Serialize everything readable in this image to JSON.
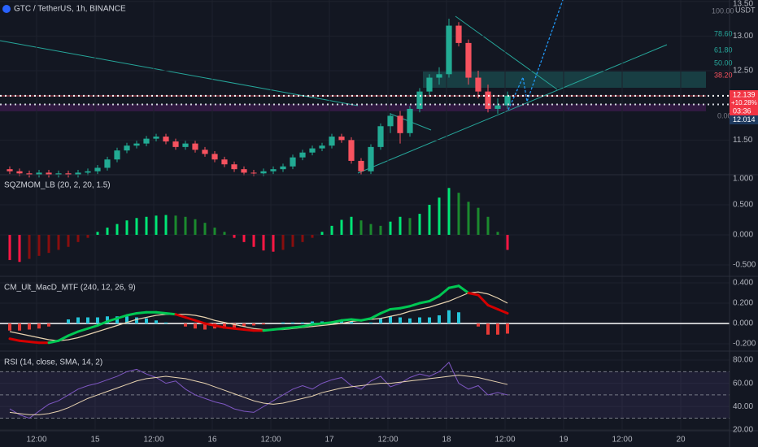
{
  "chart_data": [
    {
      "type": "candlestick",
      "title": "GTC / TetherUS, 1h, BINANCE",
      "unit": "USDT",
      "x": [
        2,
        4,
        6,
        8,
        10,
        12,
        14,
        16,
        18,
        20,
        22,
        24,
        26,
        28,
        30,
        32,
        34,
        36,
        38,
        40,
        42,
        44,
        46,
        48,
        50,
        52,
        54,
        56,
        58,
        60,
        62,
        64,
        66,
        68,
        70,
        72,
        74,
        76,
        78,
        80,
        82,
        84,
        86,
        88,
        90,
        92,
        94,
        96,
        98,
        100,
        102,
        104
      ],
      "xlim": [
        0,
        149.5
      ],
      "open": [
        11.08,
        11.05,
        11.02,
        11.0,
        11.03,
        11.0,
        11.02,
        11.0,
        11.03,
        11.05,
        11.1,
        11.22,
        11.35,
        11.42,
        11.45,
        11.52,
        11.55,
        11.48,
        11.4,
        11.45,
        11.36,
        11.3,
        11.22,
        11.15,
        11.08,
        11.03,
        11.02,
        11.05,
        11.08,
        11.12,
        11.25,
        11.32,
        11.38,
        11.42,
        11.55,
        11.5,
        11.2,
        11.05,
        11.4,
        11.7,
        11.85,
        11.6,
        11.95,
        12.2,
        12.4,
        12.45,
        13.15,
        12.9,
        12.4,
        12.2,
        11.95,
        12.0
      ],
      "high": [
        11.12,
        11.09,
        11.06,
        11.07,
        11.07,
        11.06,
        11.06,
        11.07,
        11.09,
        11.14,
        11.26,
        11.39,
        11.46,
        11.49,
        11.56,
        11.59,
        11.59,
        11.52,
        11.49,
        11.49,
        11.4,
        11.34,
        11.26,
        11.19,
        11.12,
        11.07,
        11.09,
        11.12,
        11.16,
        11.29,
        11.36,
        11.42,
        11.46,
        11.59,
        11.59,
        11.54,
        11.24,
        11.44,
        11.74,
        11.89,
        11.92,
        11.99,
        12.25,
        12.45,
        12.55,
        13.25,
        13.2,
        12.95,
        12.5,
        12.3,
        12.1,
        12.2
      ],
      "low": [
        11.01,
        10.98,
        10.96,
        10.96,
        10.96,
        10.96,
        10.96,
        10.96,
        10.99,
        11.01,
        11.06,
        11.18,
        11.31,
        11.38,
        11.41,
        11.48,
        11.44,
        11.36,
        11.36,
        11.32,
        11.26,
        11.18,
        11.11,
        11.04,
        10.99,
        10.98,
        10.98,
        11.01,
        11.04,
        11.08,
        11.21,
        11.28,
        11.34,
        11.38,
        11.46,
        11.16,
        11.0,
        11.01,
        11.36,
        11.6,
        11.45,
        11.55,
        11.9,
        12.15,
        12.3,
        12.4,
        12.85,
        12.3,
        12.1,
        11.9,
        11.88,
        11.95
      ],
      "close": [
        11.05,
        11.02,
        11.0,
        11.03,
        11.0,
        11.02,
        11.0,
        11.03,
        11.05,
        11.1,
        11.22,
        11.35,
        11.42,
        11.45,
        11.52,
        11.55,
        11.48,
        11.4,
        11.45,
        11.36,
        11.3,
        11.22,
        11.15,
        11.08,
        11.03,
        11.02,
        11.05,
        11.08,
        11.12,
        11.25,
        11.32,
        11.38,
        11.42,
        11.55,
        11.5,
        11.2,
        11.05,
        11.4,
        11.7,
        11.85,
        11.6,
        11.95,
        12.2,
        12.4,
        12.45,
        13.15,
        12.9,
        12.4,
        12.2,
        11.95,
        12.0,
        12.14
      ],
      "up_color": "#22ab94",
      "down_color": "#f7525f",
      "ylim": [
        11.0,
        13.52
      ],
      "yticks": [
        {
          "value": 13.5,
          "label": "13.50"
        },
        {
          "value": 13.0,
          "label": "13.00"
        },
        {
          "value": 12.5,
          "label": "12.50"
        },
        {
          "value": 11.5,
          "label": "11.50"
        }
      ],
      "fib_labels": [
        "100.00",
        "78.60",
        "61.80",
        "50.00",
        "38.20",
        "0.00"
      ],
      "last_price": 12.139,
      "change": "+10.28%",
      "countdown": "03:36",
      "line_price": 12.014
    },
    {
      "type": "squeeze",
      "title": "SQZMOM_LB (20, 2, 20, 1.5)",
      "values": [
        -0.42,
        -0.45,
        -0.4,
        -0.35,
        -0.3,
        -0.25,
        -0.2,
        -0.12,
        -0.05,
        0.05,
        0.12,
        0.18,
        0.24,
        0.28,
        0.3,
        0.32,
        0.33,
        0.32,
        0.3,
        0.26,
        0.2,
        0.12,
        0.05,
        -0.05,
        -0.12,
        -0.2,
        -0.26,
        -0.28,
        -0.25,
        -0.2,
        -0.12,
        -0.05,
        0.05,
        0.15,
        0.25,
        0.3,
        0.24,
        0.18,
        0.15,
        0.22,
        0.3,
        0.28,
        0.35,
        0.5,
        0.62,
        0.78,
        0.7,
        0.55,
        0.45,
        0.3,
        0.05,
        -0.25
      ],
      "colors": {
        "pos_up": "#00e676",
        "pos_down": "#1b8a2e",
        "neg_down": "#ff1744",
        "neg_up": "#880e0e"
      },
      "ylim": [
        -0.69,
        1.0
      ],
      "yticks": [
        {
          "value": 1,
          "label": "1.000"
        },
        {
          "value": 0.5,
          "label": "0.500"
        },
        {
          "value": 0,
          "label": "0.000"
        },
        {
          "value": -0.5,
          "label": "-0.500"
        }
      ]
    },
    {
      "type": "macd",
      "title": "CM_Ult_MacD_MTF (240, 12, 26, 9)",
      "macd": [
        -0.15,
        -0.17,
        -0.18,
        -0.19,
        -0.19,
        -0.17,
        -0.12,
        -0.08,
        -0.05,
        -0.02,
        0.02,
        0.05,
        0.08,
        0.1,
        0.11,
        0.11,
        0.1,
        0.09,
        0.06,
        0.03,
        0.0,
        -0.02,
        -0.04,
        -0.05,
        -0.06,
        -0.07,
        -0.07,
        -0.06,
        -0.05,
        -0.04,
        -0.03,
        -0.01,
        0.0,
        0.01,
        0.03,
        0.04,
        0.03,
        0.05,
        0.1,
        0.14,
        0.15,
        0.17,
        0.2,
        0.22,
        0.27,
        0.35,
        0.37,
        0.3,
        0.28,
        0.18,
        0.14,
        0.1
      ],
      "signal": [
        -0.08,
        -0.1,
        -0.12,
        -0.14,
        -0.16,
        -0.17,
        -0.16,
        -0.14,
        -0.11,
        -0.08,
        -0.05,
        -0.02,
        0.01,
        0.04,
        0.06,
        0.08,
        0.09,
        0.09,
        0.09,
        0.08,
        0.06,
        0.03,
        0.01,
        -0.01,
        -0.03,
        -0.05,
        -0.06,
        -0.06,
        -0.06,
        -0.05,
        -0.04,
        -0.03,
        -0.02,
        -0.01,
        0.0,
        0.02,
        0.03,
        0.04,
        0.05,
        0.07,
        0.09,
        0.12,
        0.14,
        0.16,
        0.19,
        0.22,
        0.26,
        0.3,
        0.31,
        0.29,
        0.25,
        0.2
      ],
      "histogram": [
        -0.07,
        -0.07,
        -0.06,
        -0.05,
        -0.03,
        0.0,
        0.04,
        0.06,
        0.06,
        0.06,
        0.07,
        0.07,
        0.07,
        0.06,
        0.05,
        0.03,
        0.01,
        0.0,
        -0.03,
        -0.05,
        -0.06,
        -0.05,
        -0.05,
        -0.04,
        -0.03,
        -0.02,
        -0.01,
        0.0,
        0.01,
        0.01,
        0.01,
        0.02,
        0.02,
        0.02,
        0.03,
        0.02,
        0.0,
        0.01,
        0.05,
        0.07,
        0.06,
        0.05,
        0.06,
        0.06,
        0.08,
        0.13,
        0.11,
        0.0,
        -0.03,
        -0.11,
        -0.11,
        -0.1
      ],
      "colors": {
        "macd_up": "#00c853",
        "macd_down": "#d50000",
        "signal": "#e8d3b0",
        "hist_pos": "#26c6da",
        "hist_neg": "#e53935",
        "zero": "#ffffff"
      },
      "ylim": [
        -0.272,
        0.464
      ],
      "yticks": [
        {
          "value": 0.4,
          "label": "0.400"
        },
        {
          "value": 0.2,
          "label": "0.200"
        },
        {
          "value": 0,
          "label": "0.000"
        },
        {
          "value": -0.2,
          "label": "-0.200"
        }
      ]
    },
    {
      "type": "rsi",
      "title": "RSI (14, close, SMA, 14, 2)",
      "series": [
        {
          "color": "#7e57c2",
          "values": [
            38,
            33,
            30,
            36,
            42,
            45,
            50,
            55,
            58,
            60,
            63,
            66,
            70,
            72,
            68,
            65,
            60,
            62,
            55,
            50,
            47,
            44,
            42,
            38,
            36,
            35,
            40,
            45,
            50,
            55,
            58,
            55,
            60,
            63,
            65,
            58,
            55,
            62,
            66,
            57,
            60,
            65,
            68,
            66,
            70,
            78,
            60,
            55,
            58,
            50,
            52,
            50
          ]
        },
        {
          "color": "#e8d3b0",
          "values": [
            35,
            34,
            33,
            33,
            34,
            36,
            39,
            43,
            47,
            50,
            53,
            56,
            59,
            62,
            64,
            65,
            66,
            65,
            64,
            62,
            60,
            57,
            54,
            51,
            48,
            45,
            43,
            42,
            43,
            45,
            47,
            49,
            52,
            54,
            56,
            57,
            58,
            59,
            60,
            60,
            61,
            62,
            63,
            64,
            65,
            66,
            67,
            66,
            65,
            63,
            61,
            59
          ]
        }
      ],
      "bands": [
        70,
        50,
        30
      ],
      "band_color": "#7e57c2",
      "ylim": [
        19.2,
        87.7
      ],
      "yticks": [
        {
          "value": 80,
          "label": "80.00"
        },
        {
          "value": 60,
          "label": "60.00"
        },
        {
          "value": 40,
          "label": "40.00"
        },
        {
          "value": 20,
          "label": "20.00"
        }
      ],
      "xticks": [
        {
          "value": 7.5,
          "label": "12:00"
        },
        {
          "value": 19.5,
          "label": "15"
        },
        {
          "value": 31.5,
          "label": "12:00"
        },
        {
          "value": 43.5,
          "label": "16"
        },
        {
          "value": 55.5,
          "label": "12:00"
        },
        {
          "value": 67.5,
          "label": "17"
        },
        {
          "value": 79.5,
          "label": "12:00"
        },
        {
          "value": 91.5,
          "label": "18"
        },
        {
          "value": 103.5,
          "label": "12:00"
        },
        {
          "value": 115.5,
          "label": "19"
        },
        {
          "value": 127.5,
          "label": "12:00"
        },
        {
          "value": 139.5,
          "label": "20"
        }
      ]
    }
  ]
}
